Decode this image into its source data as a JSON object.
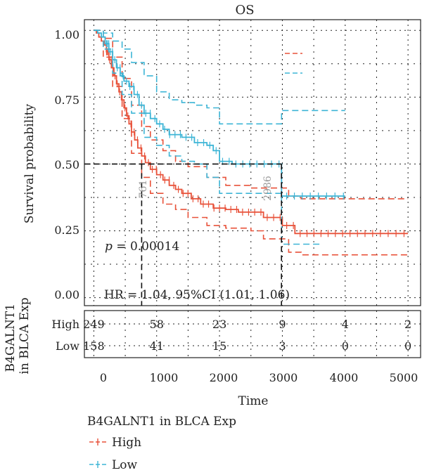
{
  "chart_data": {
    "type": "line",
    "title": "OS",
    "ylabel": "Survival probability",
    "xlabel": "Time",
    "xlim": [
      -150,
      5200
    ],
    "ylim": [
      -0.03,
      1.04
    ],
    "x_ticks": [
      "0",
      "1000",
      "2000",
      "3000",
      "4000",
      "5000"
    ],
    "y_ticks": [
      "0.00",
      "0.25",
      "0.50",
      "0.75",
      "1.00"
    ],
    "grid": "dotted",
    "annotations": {
      "p_value_prefix": "p",
      "p_value_text": " = 0.00014",
      "hr_text": "HR = 1.04, 95%CI (1.01, 1.06)",
      "median_high": "761",
      "median_low": "2986"
    },
    "colors": {
      "High": "#E8523A",
      "Low": "#3DB5D6",
      "median": "#111111"
    },
    "series": [
      {
        "name": "High",
        "points": [
          [
            0,
            1.0
          ],
          [
            40,
            0.99
          ],
          [
            80,
            0.975
          ],
          [
            120,
            0.96
          ],
          [
            160,
            0.945
          ],
          [
            200,
            0.92
          ],
          [
            240,
            0.89
          ],
          [
            280,
            0.86
          ],
          [
            320,
            0.83
          ],
          [
            360,
            0.8
          ],
          [
            400,
            0.77
          ],
          [
            440,
            0.74
          ],
          [
            480,
            0.71
          ],
          [
            520,
            0.68
          ],
          [
            560,
            0.65
          ],
          [
            600,
            0.62
          ],
          [
            650,
            0.59
          ],
          [
            700,
            0.56
          ],
          [
            761,
            0.53
          ],
          [
            820,
            0.505
          ],
          [
            900,
            0.48
          ],
          [
            1000,
            0.46
          ],
          [
            1100,
            0.44
          ],
          [
            1200,
            0.42
          ],
          [
            1300,
            0.405
          ],
          [
            1400,
            0.39
          ],
          [
            1550,
            0.37
          ],
          [
            1700,
            0.35
          ],
          [
            1900,
            0.335
          ],
          [
            2100,
            0.33
          ],
          [
            2300,
            0.32
          ],
          [
            2600,
            0.32
          ],
          [
            2700,
            0.3
          ],
          [
            2900,
            0.3
          ],
          [
            3000,
            0.27
          ],
          [
            3200,
            0.24
          ],
          [
            5000,
            0.24
          ]
        ],
        "ci_upper": [
          [
            0,
            1.0
          ],
          [
            150,
            0.97
          ],
          [
            300,
            0.9
          ],
          [
            450,
            0.82
          ],
          [
            600,
            0.72
          ],
          [
            761,
            0.64
          ],
          [
            900,
            0.59
          ],
          [
            1100,
            0.55
          ],
          [
            1300,
            0.51
          ],
          [
            1500,
            0.49
          ],
          [
            1800,
            0.45
          ],
          [
            2100,
            0.42
          ],
          [
            2500,
            0.41
          ],
          [
            2900,
            0.41
          ],
          [
            3100,
            0.38
          ],
          [
            3300,
            0.37
          ],
          [
            5000,
            0.37
          ]
        ],
        "ci_lower": [
          [
            0,
            1.0
          ],
          [
            150,
            0.9
          ],
          [
            300,
            0.79
          ],
          [
            450,
            0.67
          ],
          [
            600,
            0.54
          ],
          [
            761,
            0.45
          ],
          [
            900,
            0.39
          ],
          [
            1100,
            0.35
          ],
          [
            1300,
            0.33
          ],
          [
            1500,
            0.3
          ],
          [
            1800,
            0.27
          ],
          [
            2100,
            0.26
          ],
          [
            2500,
            0.25
          ],
          [
            2700,
            0.22
          ],
          [
            2900,
            0.22
          ],
          [
            3100,
            0.17
          ],
          [
            3300,
            0.16
          ],
          [
            5000,
            0.16
          ]
        ],
        "at_risk": [
          "249",
          "58",
          "23",
          "9",
          "4",
          "2"
        ]
      },
      {
        "name": "Low",
        "points": [
          [
            0,
            1.0
          ],
          [
            60,
            0.99
          ],
          [
            120,
            0.975
          ],
          [
            180,
            0.95
          ],
          [
            240,
            0.92
          ],
          [
            300,
            0.89
          ],
          [
            360,
            0.86
          ],
          [
            420,
            0.83
          ],
          [
            480,
            0.81
          ],
          [
            560,
            0.79
          ],
          [
            640,
            0.76
          ],
          [
            720,
            0.72
          ],
          [
            800,
            0.69
          ],
          [
            900,
            0.67
          ],
          [
            1000,
            0.65
          ],
          [
            1100,
            0.63
          ],
          [
            1200,
            0.61
          ],
          [
            1400,
            0.6
          ],
          [
            1600,
            0.58
          ],
          [
            1800,
            0.57
          ],
          [
            1900,
            0.55
          ],
          [
            2000,
            0.51
          ],
          [
            2200,
            0.5
          ],
          [
            2986,
            0.5
          ],
          [
            2987,
            0.38
          ],
          [
            4000,
            0.38
          ]
        ],
        "ci_upper": [
          [
            0,
            1.0
          ],
          [
            150,
            0.99
          ],
          [
            300,
            0.96
          ],
          [
            450,
            0.93
          ],
          [
            600,
            0.88
          ],
          [
            800,
            0.83
          ],
          [
            1000,
            0.77
          ],
          [
            1200,
            0.74
          ],
          [
            1400,
            0.73
          ],
          [
            1600,
            0.72
          ],
          [
            1800,
            0.71
          ],
          [
            2000,
            0.65
          ],
          [
            2986,
            0.65
          ],
          [
            2987,
            0.7
          ],
          [
            4000,
            0.7
          ]
        ],
        "ci_lower": [
          [
            0,
            1.0
          ],
          [
            150,
            0.93
          ],
          [
            300,
            0.84
          ],
          [
            450,
            0.76
          ],
          [
            600,
            0.69
          ],
          [
            800,
            0.6
          ],
          [
            1000,
            0.57
          ],
          [
            1200,
            0.53
          ],
          [
            1400,
            0.51
          ],
          [
            1600,
            0.5
          ],
          [
            1800,
            0.45
          ],
          [
            2000,
            0.39
          ],
          [
            2986,
            0.39
          ],
          [
            2987,
            0.2
          ],
          [
            3600,
            0.2
          ]
        ],
        "at_risk": [
          "158",
          "41",
          "15",
          "3",
          "0",
          "0"
        ]
      }
    ],
    "median_survival": [
      761,
      2986
    ]
  },
  "risk_table": {
    "group_label_line1": "B4GALNT1",
    "group_label_line2": "in BLCA Exp",
    "row_labels": [
      "High",
      "Low"
    ],
    "x_ticks": [
      "0",
      "1000",
      "2000",
      "3000",
      "4000",
      "5000"
    ]
  },
  "legend": {
    "title": "B4GALNT1 in BLCA Exp",
    "items": [
      "High",
      "Low"
    ]
  }
}
